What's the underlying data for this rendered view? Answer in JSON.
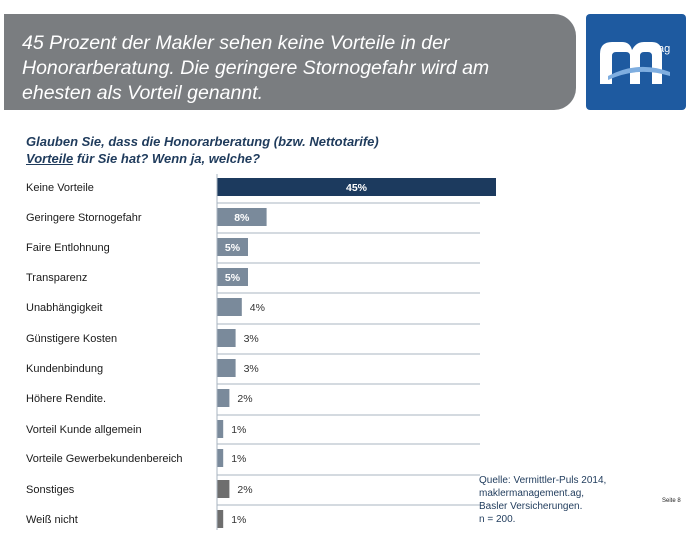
{
  "header": {
    "title": "45 Prozent der Makler sehen keine Vorteile in der\nHonorarberatung. Die geringere Stornogefahr wird am\nehesten als Vorteil genannt.",
    "logo_sup": "ag"
  },
  "question": {
    "line1": "Glauben Sie, dass die Honorarberatung (bzw. Nettotarife)",
    "line2_underlined": "Vorteile",
    "line2_rest": " für Sie hat? Wenn ja, welche?"
  },
  "chart_data": {
    "type": "bar",
    "orientation": "horizontal",
    "categories": [
      "Keine Vorteile",
      "Geringere Stornogefahr",
      "Faire Entlohnung",
      "Transparenz",
      "Unabhängigkeit",
      "Günstigere Kosten",
      "Kundenbindung",
      "Höhere Rendite.",
      "Vorteil Kunde allgemein",
      "Vorteile Gewerbekundenbereich",
      "Sonstiges",
      "Weiß nicht"
    ],
    "values": [
      45,
      8,
      5,
      5,
      4,
      3,
      3,
      2,
      1,
      1,
      2,
      1
    ],
    "value_labels": [
      "45%",
      "8%",
      "5%",
      "5%",
      "4%",
      "3%",
      "3%",
      "2%",
      "1%",
      "1%",
      "2%",
      "1%"
    ],
    "bar_colors": [
      "#1c3a5e",
      "#7a8a9b",
      "#7a8a9b",
      "#7a8a9b",
      "#7a8a9b",
      "#7a8a9b",
      "#7a8a9b",
      "#7a8a9b",
      "#7a8a9b",
      "#7a8a9b",
      "#6e6e6e",
      "#6e6e6e"
    ],
    "unit": "%",
    "xlim": [
      0,
      100
    ]
  },
  "source": {
    "lines": [
      "Quelle: Vermittler-Puls 2014,",
      "maklermanagement.ag,",
      "Basler Versicherungen.",
      "n = 200."
    ]
  },
  "page_label": "Seite 8",
  "colors": {
    "banner": "#7a7d80",
    "logo_bg": "#1e5aa0",
    "accent_text": "#1f3b5c"
  }
}
